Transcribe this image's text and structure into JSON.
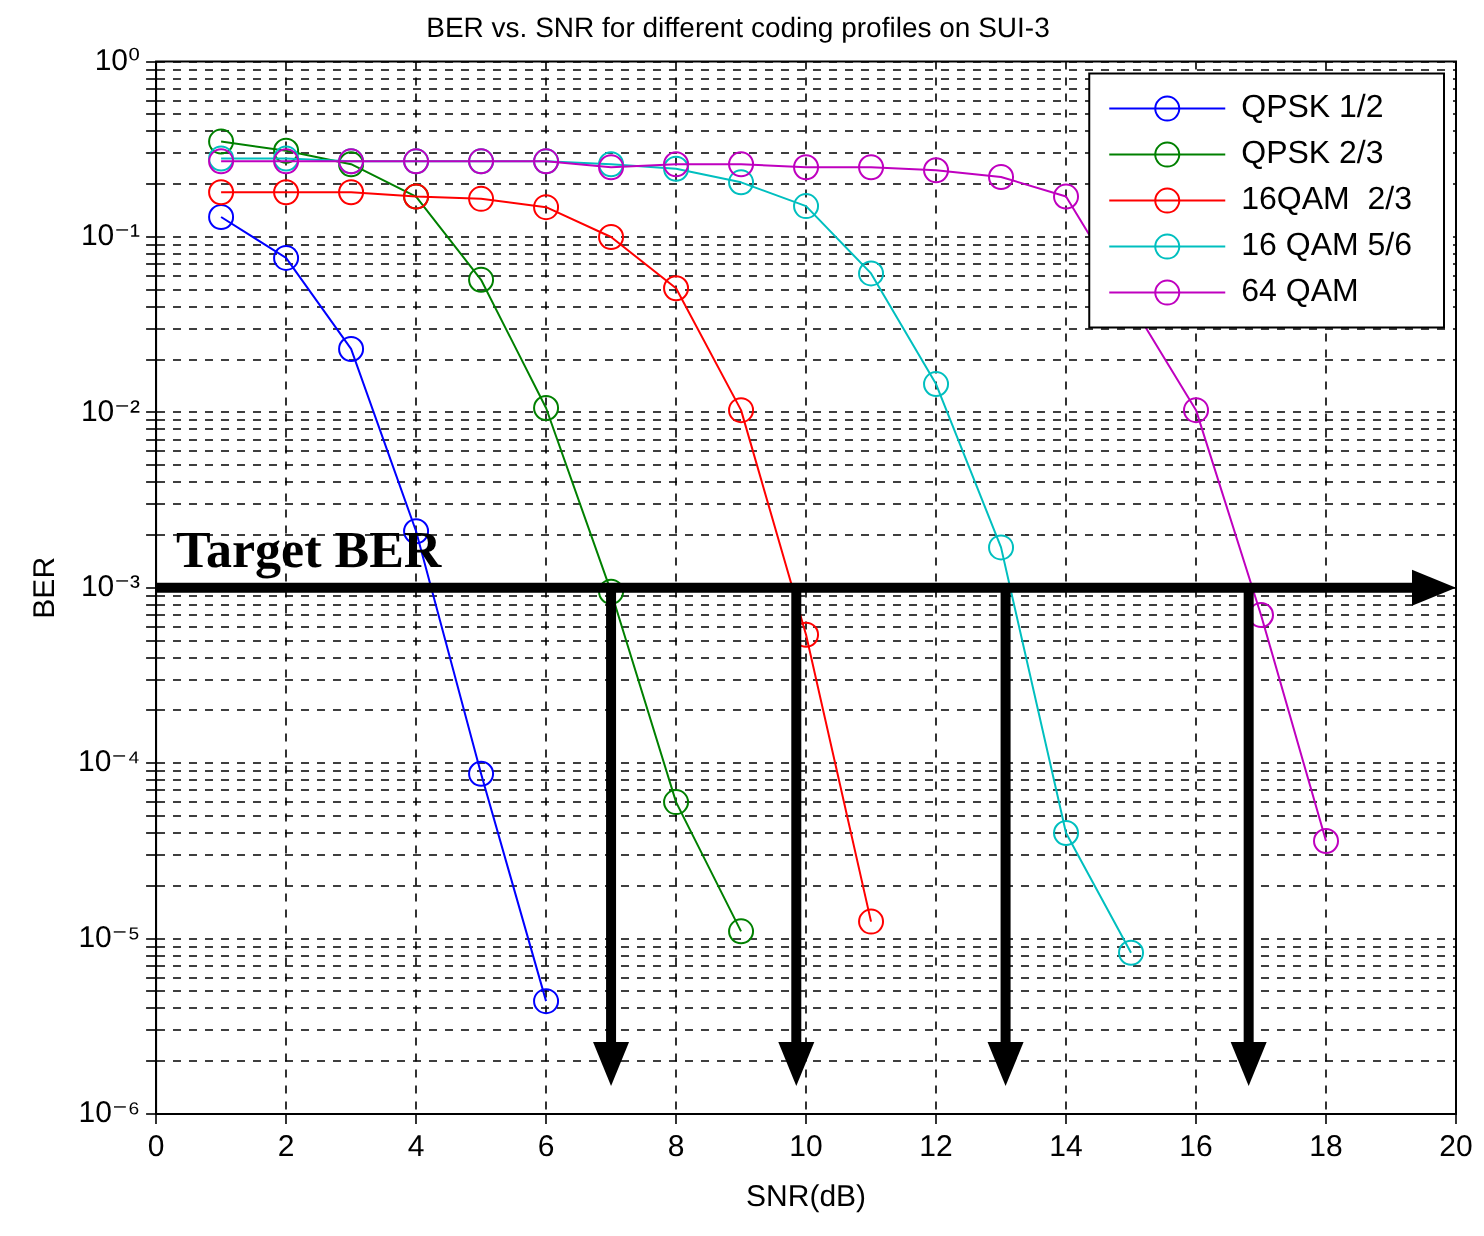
{
  "chart_data": {
    "type": "line",
    "title": "BER vs. SNR for different coding profiles on SUI-3",
    "xlabel": "SNR(dB)",
    "ylabel": "BER",
    "series": [
      {
        "name": "QPSK 1/2",
        "color": "#0000ff",
        "x": [
          1,
          2,
          3,
          4,
          5,
          6
        ],
        "values": [
          0.13,
          0.076,
          0.023,
          0.0021,
          8.7e-05,
          4.4e-06
        ]
      },
      {
        "name": "QPSK 2/3",
        "color": "#008000",
        "x": [
          1,
          2,
          3,
          4,
          5,
          6,
          7,
          8,
          9
        ],
        "values": [
          0.35,
          0.31,
          0.26,
          0.17,
          0.057,
          0.0106,
          0.00095,
          6e-05,
          1.1e-05
        ]
      },
      {
        "name": "16QAM  2/3",
        "color": "#ff0000",
        "x": [
          1,
          2,
          3,
          4,
          5,
          6,
          7,
          8,
          9,
          10,
          11
        ],
        "values": [
          0.18,
          0.18,
          0.18,
          0.17,
          0.165,
          0.148,
          0.1,
          0.051,
          0.0103,
          0.00054,
          1.25e-05
        ]
      },
      {
        "name": "16 QAM 5/6",
        "color": "#00bfbf",
        "x": [
          1,
          2,
          3,
          4,
          5,
          6,
          7,
          8,
          9,
          10,
          11,
          12,
          13,
          14,
          15
        ],
        "values": [
          0.28,
          0.28,
          0.27,
          0.27,
          0.27,
          0.27,
          0.26,
          0.245,
          0.205,
          0.15,
          0.062,
          0.0145,
          0.0017,
          4e-05,
          8.3e-06
        ]
      },
      {
        "name": "64 QAM",
        "color": "#bf00bf",
        "x": [
          1,
          2,
          3,
          4,
          5,
          6,
          7,
          8,
          9,
          10,
          11,
          12,
          13,
          14,
          15,
          16,
          17,
          18
        ],
        "values": [
          0.27,
          0.27,
          0.27,
          0.27,
          0.27,
          0.27,
          0.25,
          0.26,
          0.26,
          0.25,
          0.25,
          0.24,
          0.22,
          0.17,
          null,
          0.0103,
          0.0007,
          3.6e-05
        ]
      }
    ],
    "xlim": [
      0,
      20
    ],
    "xticks": [
      0,
      2,
      4,
      6,
      8,
      10,
      12,
      14,
      16,
      18,
      20
    ],
    "ylim": [
      1e-06,
      1
    ],
    "log": "y",
    "yticks": [
      {
        "value": 1e-06,
        "label": "10⁻⁶"
      },
      {
        "value": 2e-06,
        "label": null
      },
      {
        "value": 3e-06,
        "label": null
      },
      {
        "value": 4e-06,
        "label": null
      },
      {
        "value": 5e-06,
        "label": null
      },
      {
        "value": 6e-06,
        "label": null
      },
      {
        "value": 7e-06,
        "label": null
      },
      {
        "value": 8e-06,
        "label": null
      },
      {
        "value": 9e-06,
        "label": null
      },
      {
        "value": 1e-05,
        "label": "10⁻⁵"
      },
      {
        "value": 2e-05,
        "label": null
      },
      {
        "value": 3e-05,
        "label": null
      },
      {
        "value": 4e-05,
        "label": null
      },
      {
        "value": 5e-05,
        "label": null
      },
      {
        "value": 6e-05,
        "label": null
      },
      {
        "value": 7e-05,
        "label": null
      },
      {
        "value": 8e-05,
        "label": null
      },
      {
        "value": 9e-05,
        "label": null
      },
      {
        "value": 0.0001,
        "label": "10⁻⁴"
      },
      {
        "value": 0.0002,
        "label": null
      },
      {
        "value": 0.0003,
        "label": null
      },
      {
        "value": 0.0004,
        "label": null
      },
      {
        "value": 0.0005,
        "label": null
      },
      {
        "value": 0.0006,
        "label": null
      },
      {
        "value": 0.0007,
        "label": null
      },
      {
        "value": 0.0008,
        "label": null
      },
      {
        "value": 0.0009,
        "label": null
      },
      {
        "value": 0.001,
        "label": "10⁻³"
      },
      {
        "value": 0.002,
        "label": null
      },
      {
        "value": 0.003,
        "label": null
      },
      {
        "value": 0.004,
        "label": null
      },
      {
        "value": 0.005,
        "label": null
      },
      {
        "value": 0.006,
        "label": null
      },
      {
        "value": 0.007,
        "label": null
      },
      {
        "value": 0.008,
        "label": null
      },
      {
        "value": 0.009,
        "label": null
      },
      {
        "value": 0.01,
        "label": "10⁻²"
      },
      {
        "value": 0.02,
        "label": null
      },
      {
        "value": 0.03,
        "label": null
      },
      {
        "value": 0.04,
        "label": null
      },
      {
        "value": 0.05,
        "label": null
      },
      {
        "value": 0.06,
        "label": null
      },
      {
        "value": 0.07,
        "label": null
      },
      {
        "value": 0.08,
        "label": null
      },
      {
        "value": 0.09,
        "label": null
      },
      {
        "value": 0.1,
        "label": "10⁻¹"
      },
      {
        "value": 0.2,
        "label": null
      },
      {
        "value": 0.3,
        "label": null
      },
      {
        "value": 0.4,
        "label": null
      },
      {
        "value": 0.5,
        "label": null
      },
      {
        "value": 0.6,
        "label": null
      },
      {
        "value": 0.7,
        "label": null
      },
      {
        "value": 0.8,
        "label": null
      },
      {
        "value": 0.9,
        "label": null
      },
      {
        "value": 1,
        "label": "10⁰"
      }
    ],
    "ref_lines": [
      {
        "axis": "y",
        "value": 0.001,
        "label": "Target BER",
        "color": "#000000"
      },
      {
        "axis": "x",
        "value": 7,
        "color": "#000000"
      },
      {
        "axis": "x",
        "value": 9.85,
        "color": "#000000"
      },
      {
        "axis": "x",
        "value": 13.07,
        "color": "#000000"
      },
      {
        "axis": "x",
        "value": 16.81,
        "color": "#000000"
      }
    ],
    "grid": true,
    "legend": "top right",
    "marker": "circle",
    "line_style": "solid"
  }
}
